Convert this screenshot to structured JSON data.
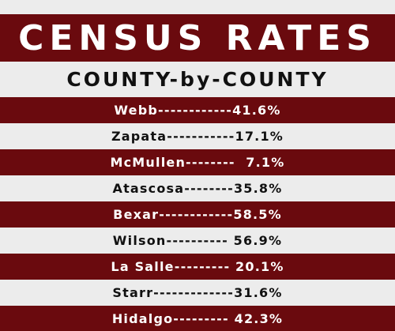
{
  "header": {
    "title": "CENSUS RATES",
    "subtitle": "COUNTY-by-COUNTY"
  },
  "rows": [
    "Webb------------41.6%",
    "Zapata-----------17.1%",
    "McMullen--------  7.1%",
    "Atascosa--------35.8%",
    "Bexar------------58.5%",
    "Wilson---------- 56.9%",
    "La Salle--------- 20.1%",
    "Starr-------------31.6%",
    "Hidalgo--------- 42.3%"
  ]
}
